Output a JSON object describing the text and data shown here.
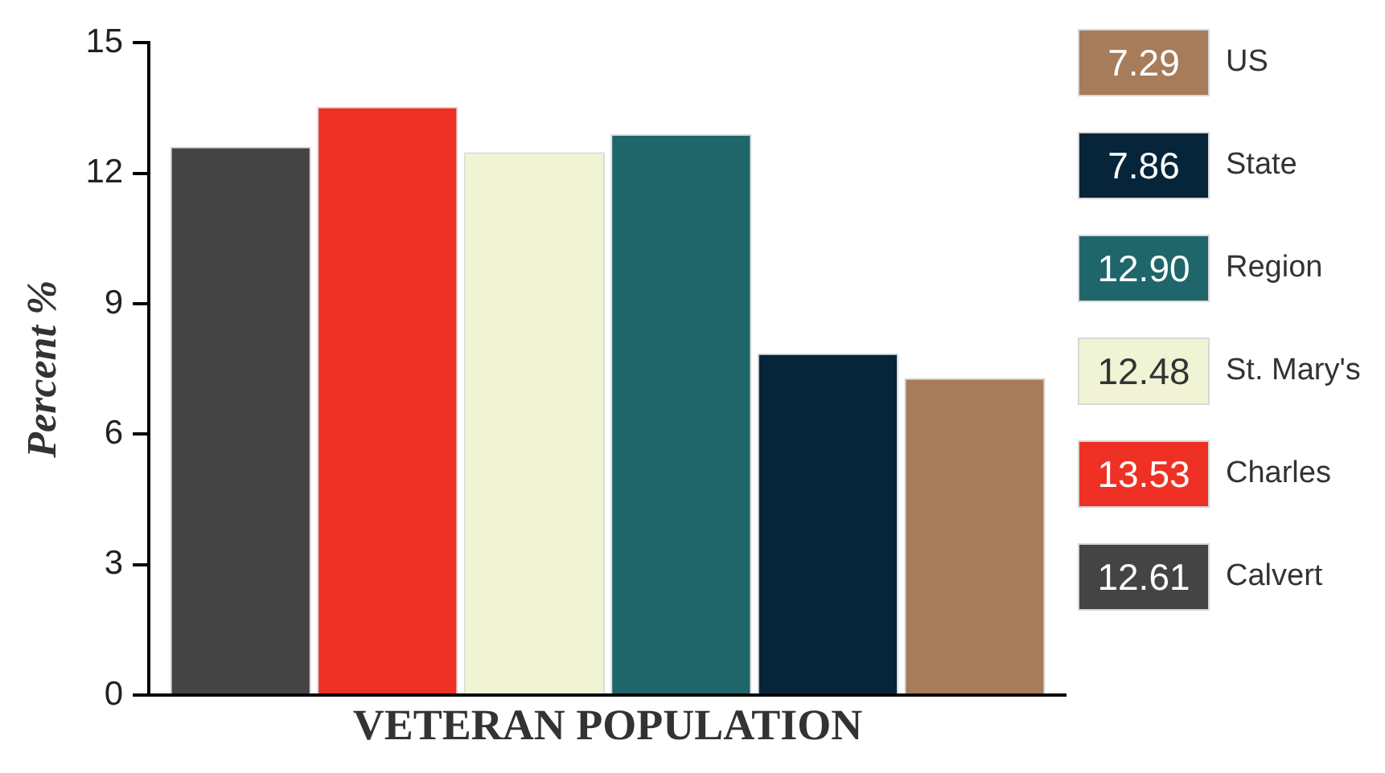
{
  "chart_data": {
    "type": "bar",
    "xlabel": "VETERAN POPULATION",
    "ylabel": "Percent %",
    "categories": [
      null
    ],
    "series": [
      {
        "name": "Calvert",
        "color": "#444444",
        "values": [
          12.61
        ]
      },
      {
        "name": "Charles",
        "color": "#ee3124",
        "values": [
          13.53
        ]
      },
      {
        "name": "St. Mary's",
        "color": "#f0f3d4",
        "values": [
          12.48
        ]
      },
      {
        "name": "Region",
        "color": "#1f666b",
        "values": [
          12.9
        ]
      },
      {
        "name": "State",
        "color": "#06253a",
        "values": [
          7.86
        ]
      },
      {
        "name": "US",
        "color": "#a67c5b",
        "values": [
          7.29
        ]
      }
    ],
    "ylim": [
      0,
      15
    ],
    "yticks": [
      0,
      3,
      6,
      9,
      12,
      15
    ],
    "grid": false,
    "legend": "right",
    "annotations": [
      "12.61",
      "13.53",
      "12.48",
      "12.90",
      "7.86",
      "7.29"
    ]
  }
}
